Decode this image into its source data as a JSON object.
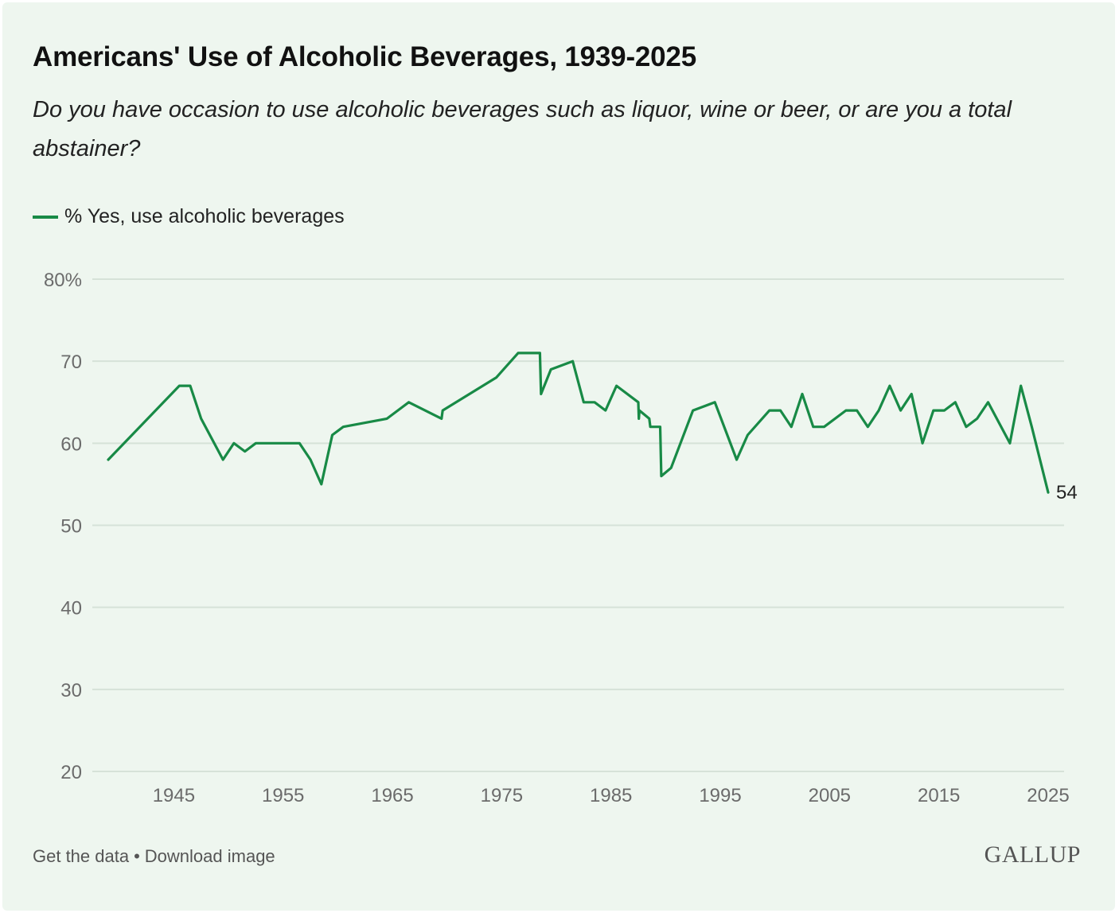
{
  "colors": {
    "series": "#188a46",
    "grid": "#d6e2d8",
    "background": "#eef6ef"
  },
  "footer": {
    "get_data": "Get the data",
    "separator": "•",
    "download": "Download image",
    "logo": "GALLUP"
  },
  "chart_data": {
    "type": "line",
    "title": "Americans' Use of Alcoholic Beverages, 1939-2025",
    "subtitle": "Do you have occasion to use alcoholic beverages such as liquor, wine or beer, or are you a total abstainer?",
    "xlabel": "",
    "ylabel": "",
    "xlim": [
      1939,
      2025
    ],
    "ylim": [
      20,
      80
    ],
    "yticks": [
      20,
      30,
      40,
      50,
      60,
      70,
      80
    ],
    "ytick_labels": [
      "20",
      "30",
      "40",
      "50",
      "60",
      "70",
      "80%"
    ],
    "xticks": [
      1945,
      1955,
      1965,
      1975,
      1985,
      1995,
      2005,
      2015,
      2025
    ],
    "xtick_labels": [
      "1945",
      "1955",
      "1965",
      "1975",
      "1985",
      "1995",
      "2005",
      "2015",
      "2025"
    ],
    "grid": true,
    "legend_position": "top-left",
    "end_label": "54",
    "series": [
      {
        "name": "% Yes, use alcoholic beverages",
        "x": [
          1939,
          1945.5,
          1946.5,
          1947.5,
          1949.5,
          1950.5,
          1951.5,
          1952.5,
          1955.5,
          1956.5,
          1957.5,
          1958.5,
          1959.5,
          1960.5,
          1964.5,
          1966.5,
          1969.5,
          1969.6,
          1974.5,
          1976.5,
          1978.5,
          1978.6,
          1979.5,
          1981.5,
          1982.5,
          1983.5,
          1984.5,
          1985.5,
          1987.5,
          1987.55,
          1987.6,
          1988.5,
          1988.6,
          1989.5,
          1989.6,
          1990.5,
          1992.5,
          1994.5,
          1996.5,
          1997.5,
          1999.5,
          2000.5,
          2001.5,
          2002.5,
          2003.5,
          2004.5,
          2006.5,
          2007.5,
          2008.5,
          2009.5,
          2010.5,
          2011.5,
          2012.5,
          2013.5,
          2014.5,
          2015.5,
          2016.5,
          2017.5,
          2018.5,
          2019.5,
          2021.5,
          2022.5,
          2023.5,
          2025
        ],
        "values": [
          58,
          67,
          67,
          63,
          58,
          60,
          59,
          60,
          60,
          60,
          58,
          55,
          61,
          62,
          63,
          65,
          63,
          64,
          68,
          71,
          71,
          66,
          69,
          70,
          65,
          65,
          64,
          67,
          65,
          63,
          64,
          63,
          62,
          62,
          56,
          57,
          64,
          65,
          58,
          61,
          64,
          64,
          62,
          66,
          62,
          62,
          64,
          64,
          62,
          64,
          67,
          64,
          66,
          60,
          64,
          64,
          65,
          62,
          63,
          65,
          60,
          67,
          62,
          54
        ]
      }
    ]
  }
}
